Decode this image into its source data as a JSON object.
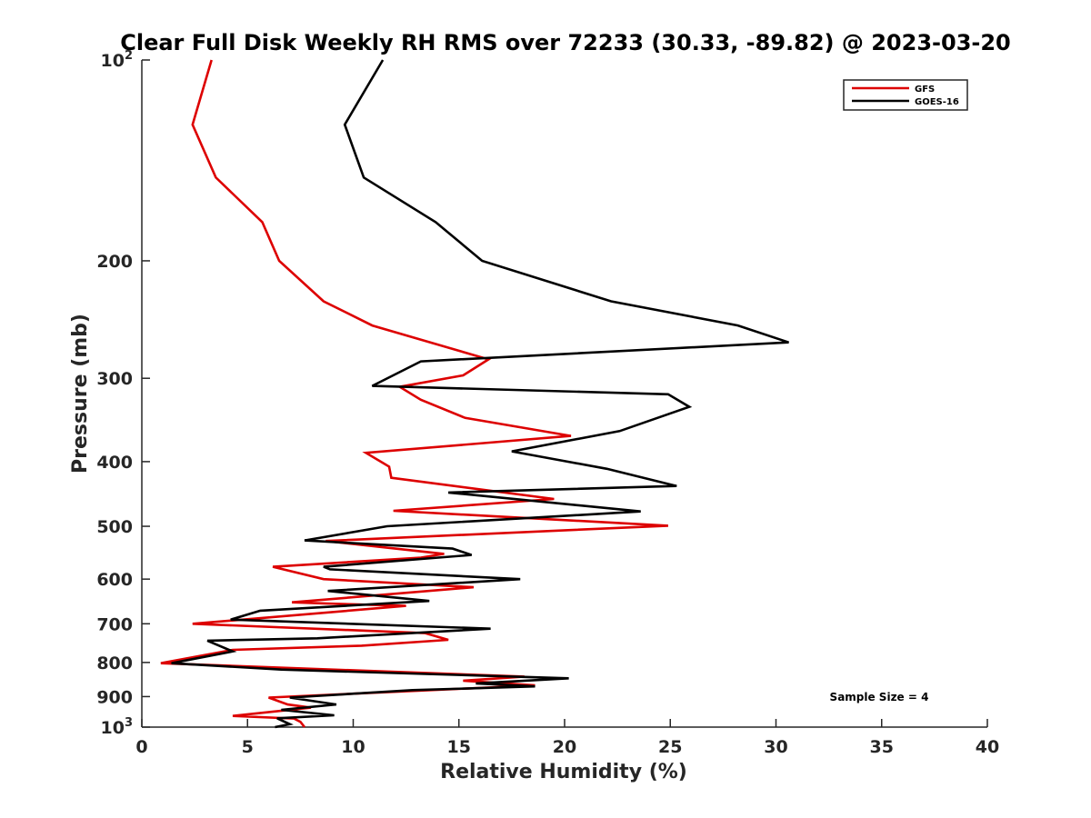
{
  "chart_data": {
    "type": "line",
    "title": "Clear Full Disk Weekly RH RMS over 72233 (30.33, -89.82) @ 2023-03-20",
    "xlabel": "Relative Humidity (%)",
    "ylabel": "Pressure (mb)",
    "xlim": [
      0,
      40
    ],
    "ylim": [
      100,
      1000
    ],
    "yscale": "log",
    "y_reversed": true,
    "x_ticks": [
      0,
      5,
      10,
      15,
      20,
      25,
      30,
      35,
      40
    ],
    "x_tick_labels": [
      "0",
      "5",
      "10",
      "15",
      "20",
      "25",
      "30",
      "35",
      "40"
    ],
    "y_ticks": [
      100,
      200,
      300,
      400,
      500,
      600,
      700,
      800,
      900,
      1000
    ],
    "y_tick_labels": [
      {
        "base": "10",
        "sup": "2"
      },
      {
        "base": "200",
        "sup": ""
      },
      {
        "base": "300",
        "sup": ""
      },
      {
        "base": "400",
        "sup": ""
      },
      {
        "base": "500",
        "sup": ""
      },
      {
        "base": "600",
        "sup": ""
      },
      {
        "base": "700",
        "sup": ""
      },
      {
        "base": "800",
        "sup": ""
      },
      {
        "base": "900",
        "sup": ""
      },
      {
        "base": "10",
        "sup": "3"
      }
    ],
    "legend_position": "top-right",
    "annotation": "Sample Size = 4",
    "series": [
      {
        "name": "GFS",
        "color": "#dd0000",
        "points": [
          [
            3.3,
            100
          ],
          [
            2.4,
            125
          ],
          [
            3.5,
            150
          ],
          [
            5.7,
            175
          ],
          [
            6.5,
            200
          ],
          [
            8.6,
            230
          ],
          [
            10.9,
            250
          ],
          [
            16.4,
            281
          ],
          [
            15.2,
            297
          ],
          [
            12.2,
            309
          ],
          [
            13.2,
            323
          ],
          [
            15.3,
            344
          ],
          [
            20.3,
            366
          ],
          [
            10.6,
            388
          ],
          [
            11.7,
            407
          ],
          [
            11.8,
            423
          ],
          [
            19.5,
            455
          ],
          [
            11.9,
            474
          ],
          [
            24.9,
            499
          ],
          [
            8.7,
            526
          ],
          [
            14.3,
            550
          ],
          [
            13.2,
            557
          ],
          [
            6.2,
            575
          ],
          [
            8.6,
            600
          ],
          [
            15.7,
            617
          ],
          [
            7.1,
            650
          ],
          [
            8.8,
            653
          ],
          [
            12.5,
            658
          ],
          [
            2.4,
            700
          ],
          [
            13.4,
            723
          ],
          [
            14.5,
            740
          ],
          [
            10.4,
            755
          ],
          [
            4.3,
            766
          ],
          [
            0.9,
            802
          ],
          [
            18.1,
            840
          ],
          [
            15.2,
            852
          ],
          [
            18.6,
            866
          ],
          [
            6.0,
            903
          ],
          [
            6.9,
            925
          ],
          [
            8.0,
            935
          ],
          [
            4.3,
            962
          ],
          [
            7.2,
            971
          ],
          [
            7.5,
            982
          ],
          [
            7.7,
            1000
          ]
        ]
      },
      {
        "name": "GOES-16",
        "color": "#000000",
        "points": [
          [
            11.4,
            100
          ],
          [
            9.6,
            125
          ],
          [
            10.5,
            150
          ],
          [
            13.9,
            175
          ],
          [
            16.1,
            200
          ],
          [
            22.2,
            230
          ],
          [
            28.2,
            250
          ],
          [
            30.6,
            265
          ],
          [
            13.2,
            283
          ],
          [
            10.9,
            308
          ],
          [
            24.9,
            317
          ],
          [
            25.9,
            331
          ],
          [
            22.6,
            360
          ],
          [
            17.5,
            386
          ],
          [
            22.0,
            410
          ],
          [
            25.3,
            435
          ],
          [
            14.5,
            445
          ],
          [
            23.6,
            475
          ],
          [
            11.6,
            500
          ],
          [
            7.7,
            525
          ],
          [
            14.7,
            540
          ],
          [
            15.6,
            552
          ],
          [
            8.6,
            575
          ],
          [
            8.9,
            580
          ],
          [
            17.9,
            600
          ],
          [
            8.8,
            625
          ],
          [
            13.6,
            647
          ],
          [
            5.6,
            669
          ],
          [
            4.2,
            690
          ],
          [
            16.5,
            712
          ],
          [
            8.3,
            736
          ],
          [
            3.1,
            742
          ],
          [
            4.3,
            770
          ],
          [
            1.4,
            802
          ],
          [
            6.6,
            820
          ],
          [
            20.2,
            845
          ],
          [
            15.8,
            860
          ],
          [
            18.6,
            869
          ],
          [
            12.8,
            880
          ],
          [
            7.0,
            903
          ],
          [
            9.2,
            925
          ],
          [
            6.6,
            942
          ],
          [
            9.1,
            960
          ],
          [
            6.4,
            970
          ],
          [
            7.0,
            990
          ],
          [
            6.3,
            1000
          ]
        ]
      }
    ]
  }
}
